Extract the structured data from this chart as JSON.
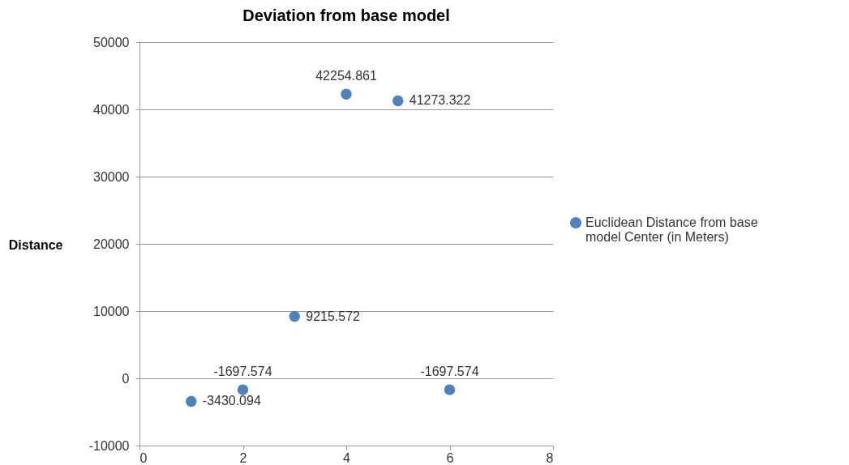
{
  "chart_data": {
    "type": "scatter",
    "title": "Deviation from base model",
    "ylabel": "Distance",
    "x": [
      1,
      2,
      3,
      4,
      5,
      6
    ],
    "series": [
      {
        "name": "Euclidean Distance from base model Center (in Meters)",
        "color": "#4f81bd",
        "values": [
          -3430.094,
          -1697.574,
          9215.572,
          42254.861,
          41273.322,
          -1697.574
        ]
      }
    ],
    "xlim": [
      0,
      8
    ],
    "xticks": [
      0,
      2,
      4,
      6,
      8
    ],
    "ylim": [
      -10000,
      50000
    ],
    "yticks": [
      -10000,
      0,
      10000,
      20000,
      30000,
      40000,
      50000
    ],
    "grid": "y",
    "legend": "right",
    "marker": "circle",
    "data_labels": true
  }
}
